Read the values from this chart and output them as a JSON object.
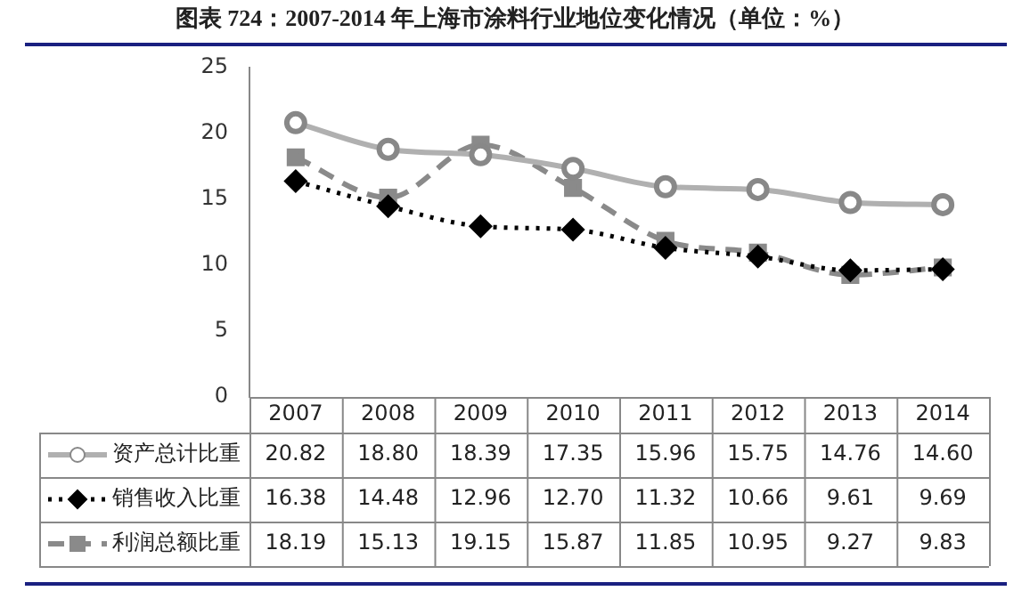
{
  "chart_data": {
    "type": "line",
    "title": "图表 724：2007-2014 年上海市涂料行业地位变化情况（单位：%）",
    "categories": [
      "2007",
      "2008",
      "2009",
      "2010",
      "2011",
      "2012",
      "2013",
      "2014"
    ],
    "series": [
      {
        "name": "资产总计比重",
        "color": "#b0b0b0",
        "marker": "circle",
        "line_style": "solid",
        "values": [
          20.82,
          18.8,
          18.39,
          17.35,
          15.96,
          15.75,
          14.76,
          14.6
        ],
        "value_labels": [
          "20.82",
          "18.80",
          "18.39",
          "17.35",
          "15.96",
          "15.75",
          "14.76",
          "14.60"
        ]
      },
      {
        "name": "销售收入比重",
        "color": "#000000",
        "marker": "diamond",
        "line_style": "dotted",
        "values": [
          16.38,
          14.48,
          12.96,
          12.7,
          11.32,
          10.66,
          9.61,
          9.69
        ],
        "value_labels": [
          "16.38",
          "14.48",
          "12.96",
          "12.70",
          "11.32",
          "10.66",
          "9.61",
          "9.69"
        ]
      },
      {
        "name": "利润总额比重",
        "color": "#8a8a8a",
        "marker": "square",
        "line_style": "dashed",
        "values": [
          18.19,
          15.13,
          19.15,
          15.87,
          11.85,
          10.95,
          9.27,
          9.83
        ],
        "value_labels": [
          "18.19",
          "15.13",
          "19.15",
          "15.87",
          "11.85",
          "10.95",
          "9.27",
          "9.83"
        ]
      }
    ],
    "ylim": [
      0,
      25
    ],
    "yticks": [
      0,
      5,
      10,
      15,
      20,
      25
    ],
    "grid": false,
    "legend": "bottom"
  }
}
